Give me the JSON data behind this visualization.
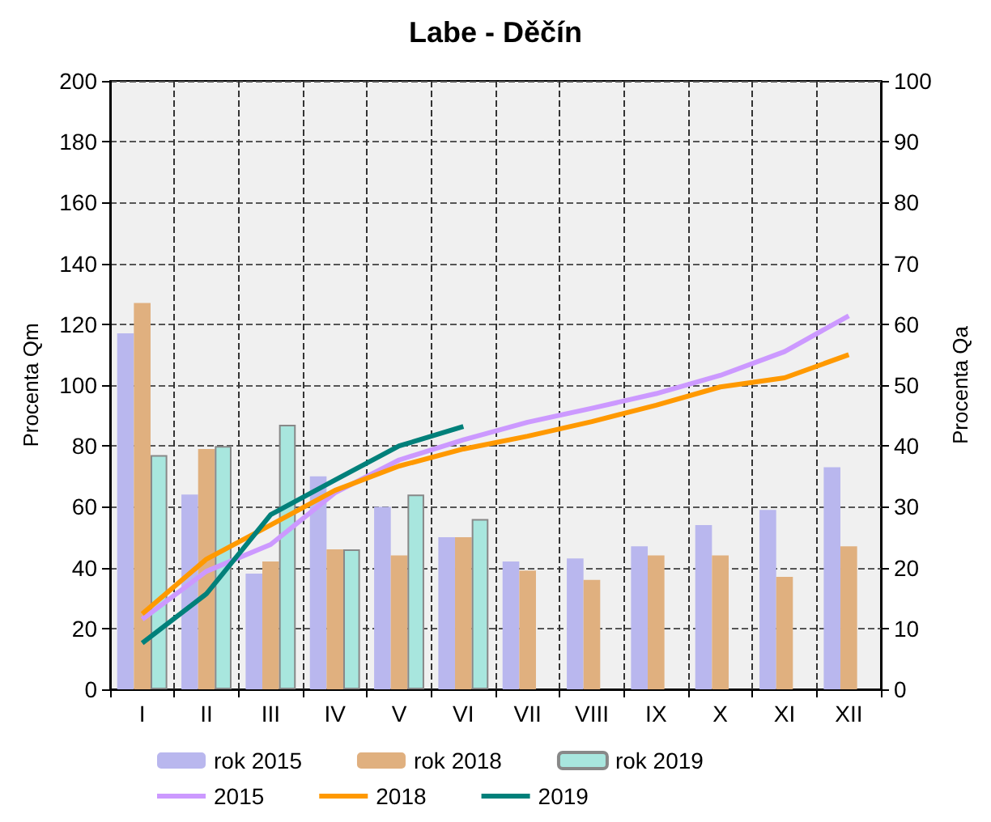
{
  "chart_data": {
    "type": "bar",
    "title": "Labe - Děčín",
    "ylabel": "Procenta Qm",
    "y2label": "Procenta Qa",
    "categories": [
      "I",
      "II",
      "III",
      "IV",
      "V",
      "VI",
      "VII",
      "VIII",
      "IX",
      "X",
      "XI",
      "XII"
    ],
    "series": [
      {
        "name": "rok 2015",
        "color": "#b9b7ee",
        "values": [
          117,
          64,
          38,
          70,
          60,
          50,
          42,
          43,
          47,
          54,
          59,
          73
        ]
      },
      {
        "name": "rok 2018",
        "color": "#e0b07f",
        "values": [
          127,
          79,
          42,
          46,
          44,
          50,
          39,
          36,
          44,
          44,
          37,
          47
        ]
      },
      {
        "name": "rok 2019",
        "color": "#a8e6de",
        "values": [
          77,
          80,
          87,
          46,
          64,
          56,
          null,
          null,
          null,
          null,
          null,
          null
        ]
      },
      {
        "name": "2015",
        "type": "line",
        "axis": "y2",
        "color": "#cc99ff",
        "values": [
          11.5,
          19.4,
          23.8,
          32.3,
          37.7,
          41,
          43.9,
          46.2,
          48.6,
          51.6,
          55.5,
          61.4
        ]
      },
      {
        "name": "2018",
        "type": "line",
        "axis": "y2",
        "color": "#ff9900",
        "values": [
          12.4,
          21.4,
          27,
          32.7,
          36.7,
          39.5,
          41.6,
          44,
          46.7,
          49.7,
          51.2,
          55
        ]
      },
      {
        "name": "2019",
        "type": "line",
        "axis": "y2",
        "color": "#00807a",
        "values": [
          7.6,
          15.7,
          28.7,
          34.4,
          40,
          43.2,
          null,
          null,
          null,
          null,
          null,
          null
        ]
      }
    ],
    "ylim": [
      0,
      200
    ],
    "yticks": [
      0,
      20,
      40,
      60,
      80,
      100,
      120,
      140,
      160,
      180,
      200
    ],
    "y2lim": [
      0,
      100
    ],
    "y2ticks": [
      0,
      10,
      20,
      30,
      40,
      50,
      60,
      70,
      80,
      90,
      100
    ],
    "grid": true,
    "legend": "bottom",
    "marker": "none",
    "line_style": "solid"
  }
}
